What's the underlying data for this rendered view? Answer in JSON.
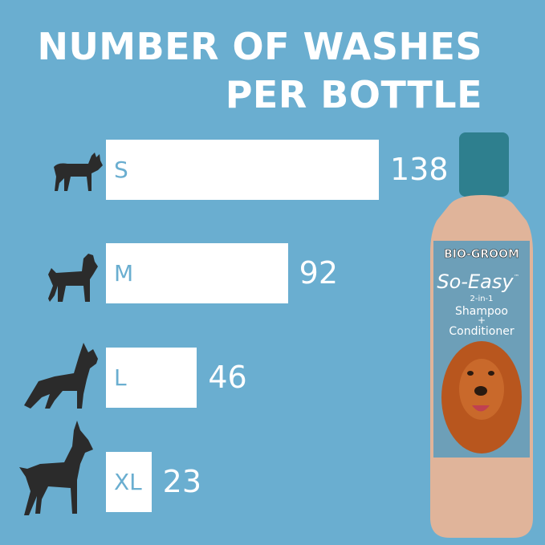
{
  "chart_data": {
    "type": "bar",
    "orientation": "horizontal",
    "title": "NUMBER OF WASHES PER BOTTLE",
    "title_lines": [
      "NUMBER OF WASHES",
      "PER BOTTLE"
    ],
    "categories": [
      "S",
      "M",
      "L",
      "XL"
    ],
    "values": [
      138,
      92,
      46,
      23
    ],
    "value_labels": [
      "138",
      "92",
      "46",
      "23"
    ],
    "xlim": [
      0,
      138
    ],
    "grid": false,
    "colors": {
      "background": "#6aaed0",
      "bar": "#ffffff",
      "category_text": "#6aaed0",
      "value_text": "#ffffff",
      "silhouette": "#2b2b2b"
    },
    "category_icons": [
      "small-dog-silhouette-icon",
      "medium-dog-silhouette-icon",
      "large-dog-silhouette-icon",
      "xl-dog-silhouette-icon"
    ]
  },
  "product": {
    "brand": "BIO-GROOM",
    "name": "So-Easy",
    "tm": "™",
    "line1": "2-in-1",
    "line2": "Shampoo",
    "line3": "+",
    "line4": "Conditioner"
  }
}
